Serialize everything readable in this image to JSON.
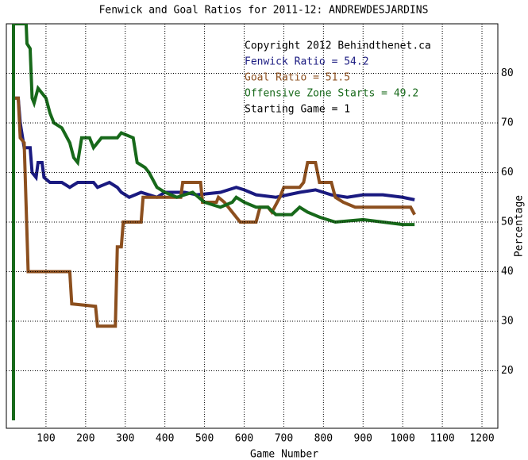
{
  "chart_data": {
    "type": "line",
    "title": "Fenwick and Goal Ratios for 2011-12: ANDREWDESJARDINS",
    "xlabel": "Game Number",
    "ylabel": "Percentage",
    "annotations": [
      "Copyright 2012 Behindthenet.ca",
      "Starting Game = 1"
    ],
    "xlim": [
      0,
      1240
    ],
    "ylim": [
      8.4,
      90
    ],
    "xticks": [
      100,
      200,
      300,
      400,
      500,
      600,
      700,
      800,
      900,
      1000,
      1100,
      1200
    ],
    "yticks": [
      20,
      30,
      40,
      50,
      60,
      70,
      80
    ],
    "grid": true,
    "series": [
      {
        "name": "Fenwick Ratio = 54.2",
        "color": "#1a1a80",
        "x": [
          20,
          30,
          35,
          45,
          60,
          65,
          75,
          80,
          90,
          95,
          110,
          140,
          160,
          180,
          220,
          230,
          260,
          280,
          290,
          310,
          340,
          380,
          400,
          450,
          480,
          540,
          560,
          580,
          600,
          630,
          680,
          740,
          780,
          820,
          860,
          900,
          950,
          1000,
          1030
        ],
        "values": [
          75,
          75,
          70,
          65,
          65,
          60,
          59,
          62,
          62,
          59,
          58,
          58,
          57,
          58,
          58,
          57,
          58,
          57,
          56,
          55,
          56,
          55,
          56,
          56,
          55.5,
          56,
          56.5,
          57,
          56.5,
          55.5,
          55,
          56,
          56.5,
          55.5,
          55,
          55.5,
          55.5,
          55,
          54.5
        ]
      },
      {
        "name": "Goal Ratio = 51.5",
        "color": "#8c4f1e",
        "x": [
          20,
          30,
          35,
          45,
          55,
          70,
          160,
          165,
          225,
          230,
          275,
          280,
          290,
          295,
          340,
          345,
          440,
          445,
          490,
          495,
          530,
          535,
          550,
          590,
          630,
          640,
          660,
          670,
          690,
          700,
          740,
          750,
          760,
          780,
          790,
          820,
          830,
          850,
          880,
          960,
          1020,
          1030
        ],
        "values": [
          75,
          75,
          67,
          66,
          40,
          40,
          40,
          33.5,
          33,
          29,
          29,
          45,
          45,
          50,
          50,
          55,
          55,
          58,
          58,
          54,
          54,
          55,
          54,
          50,
          50,
          53,
          53,
          52,
          55,
          57,
          57,
          58,
          62,
          62,
          58,
          58,
          55,
          54,
          53,
          53,
          53,
          51.5
        ]
      },
      {
        "name": "Offensive Zone Starts = 49.2",
        "color": "#17691a",
        "x": [
          18,
          18,
          50,
          52,
          60,
          65,
          70,
          80,
          100,
          110,
          120,
          140,
          160,
          170,
          180,
          190,
          210,
          220,
          240,
          280,
          290,
          320,
          330,
          350,
          360,
          380,
          400,
          430,
          470,
          500,
          540,
          570,
          580,
          600,
          630,
          660,
          680,
          720,
          740,
          760,
          790,
          830,
          900,
          950,
          1000,
          1030
        ],
        "values": [
          10,
          90,
          90,
          86,
          85,
          75,
          74,
          77,
          75,
          72,
          70,
          69,
          66,
          63,
          62,
          67,
          67,
          65,
          67,
          67,
          68,
          67,
          62,
          61,
          60,
          57,
          56,
          55,
          56,
          54,
          53,
          54,
          55,
          54,
          53,
          53,
          51.5,
          51.5,
          53,
          52,
          51,
          50,
          50.5,
          50,
          49.5,
          49.5
        ]
      }
    ]
  }
}
